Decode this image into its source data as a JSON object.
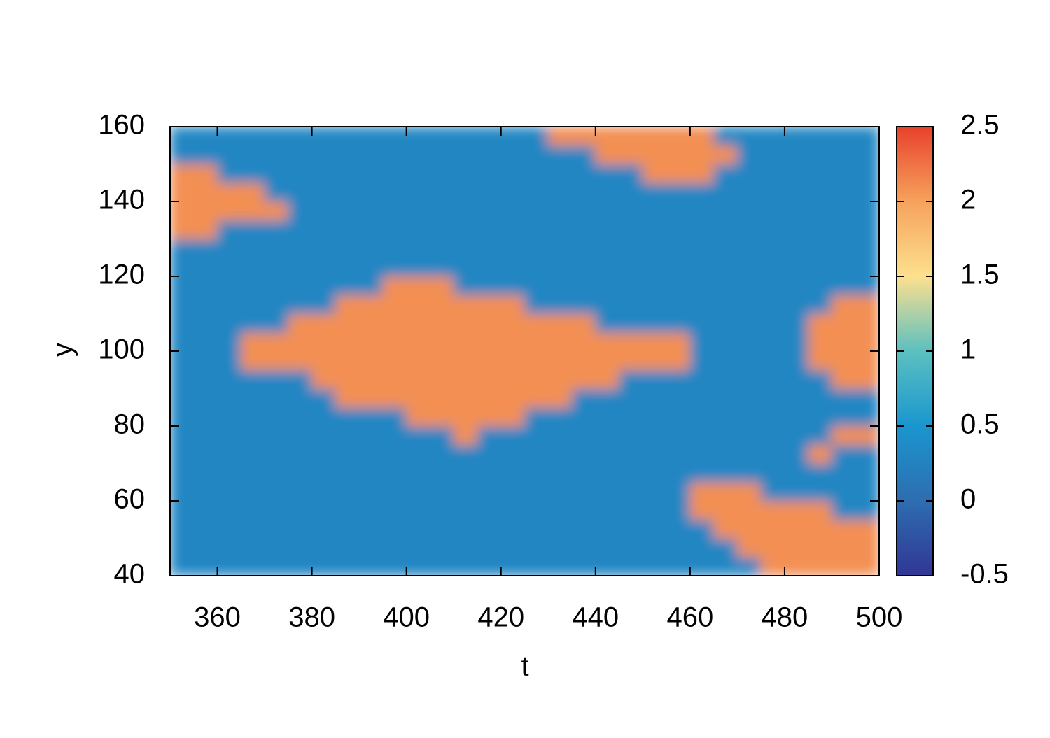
{
  "chart_data": {
    "type": "heatmap",
    "x_label": "t",
    "y_label": "y",
    "xlim": [
      350,
      500
    ],
    "ylim": [
      40,
      160
    ],
    "xticks": [
      360,
      380,
      400,
      420,
      440,
      460,
      480,
      500
    ],
    "yticks": [
      40,
      60,
      80,
      100,
      120,
      140,
      160
    ],
    "zlim": [
      -0.5,
      2.5
    ],
    "zticks": [
      -0.5,
      0,
      0.5,
      1,
      1.5,
      2,
      2.5
    ],
    "colorscale": [
      "#313695",
      "#2e6db0",
      "#1a96cf",
      "#5cc0c0",
      "#fde08e",
      "#f6a25c",
      "#e8412c"
    ],
    "x": [
      352.5,
      357.5,
      362.5,
      367.5,
      372.5,
      377.5,
      382.5,
      387.5,
      392.5,
      397.5,
      402.5,
      407.5,
      412.5,
      417.5,
      422.5,
      427.5,
      432.5,
      437.5,
      442.5,
      447.5,
      452.5,
      457.5,
      462.5,
      467.5,
      472.5,
      477.5,
      482.5,
      487.5,
      492.5,
      497.5
    ],
    "y": [
      42.5,
      47.5,
      52.5,
      57.5,
      62.5,
      67.5,
      72.5,
      77.5,
      82.5,
      87.5,
      92.5,
      97.5,
      102.5,
      107.5,
      112.5,
      117.5,
      122.5,
      127.5,
      132.5,
      137.5,
      142.5,
      147.5,
      152.5,
      157.5
    ],
    "z": [
      [
        0.3,
        0.3,
        0.3,
        0.3,
        0.3,
        0.3,
        0.3,
        0.3,
        0.3,
        0.3,
        0.3,
        0.3,
        0.3,
        0.3,
        0.3,
        0.3,
        0.3,
        0.3,
        0.3,
        0.3,
        0.3,
        0.3,
        0.3,
        0.3,
        0.3,
        2.1,
        2.1,
        2.1,
        2.1,
        2.1
      ],
      [
        0.3,
        0.3,
        0.3,
        0.3,
        0.3,
        0.3,
        0.3,
        0.3,
        0.3,
        0.3,
        0.3,
        0.3,
        0.3,
        0.3,
        0.3,
        0.3,
        0.3,
        0.3,
        0.3,
        0.3,
        0.3,
        0.3,
        0.3,
        0.3,
        2.1,
        2.1,
        2.1,
        2.1,
        2.1,
        2.1
      ],
      [
        0.3,
        0.3,
        0.3,
        0.3,
        0.3,
        0.3,
        0.3,
        0.3,
        0.3,
        0.3,
        0.3,
        0.3,
        0.3,
        0.3,
        0.3,
        0.3,
        0.3,
        0.3,
        0.3,
        0.3,
        0.3,
        0.3,
        0.3,
        2.1,
        2.1,
        2.1,
        2.1,
        2.1,
        2.1,
        2.1
      ],
      [
        0.3,
        0.3,
        0.3,
        0.3,
        0.3,
        0.3,
        0.3,
        0.3,
        0.3,
        0.3,
        0.3,
        0.3,
        0.3,
        0.3,
        0.3,
        0.3,
        0.3,
        0.3,
        0.3,
        0.3,
        0.3,
        0.3,
        2.1,
        2.1,
        2.1,
        2.1,
        2.1,
        2.1,
        0.3,
        0.3
      ],
      [
        0.3,
        0.3,
        0.3,
        0.3,
        0.3,
        0.3,
        0.3,
        0.3,
        0.3,
        0.3,
        0.3,
        0.3,
        0.3,
        0.3,
        0.3,
        0.3,
        0.3,
        0.3,
        0.3,
        0.3,
        0.3,
        0.3,
        2.1,
        2.1,
        2.1,
        0.3,
        0.3,
        0.3,
        0.3,
        0.3
      ],
      [
        0.3,
        0.3,
        0.3,
        0.3,
        0.3,
        0.3,
        0.3,
        0.3,
        0.3,
        0.3,
        0.3,
        0.3,
        0.3,
        0.3,
        0.3,
        0.3,
        0.3,
        0.3,
        0.3,
        0.3,
        0.3,
        0.3,
        0.3,
        0.3,
        0.3,
        0.3,
        0.3,
        0.3,
        0.3,
        0.3
      ],
      [
        0.3,
        0.3,
        0.3,
        0.3,
        0.3,
        0.3,
        0.3,
        0.3,
        0.3,
        0.3,
        0.3,
        0.3,
        0.3,
        0.3,
        0.3,
        0.3,
        0.3,
        0.3,
        0.3,
        0.3,
        0.3,
        0.3,
        0.3,
        0.3,
        0.3,
        0.3,
        0.3,
        2.1,
        0.3,
        0.3
      ],
      [
        0.3,
        0.3,
        0.3,
        0.3,
        0.3,
        0.3,
        0.3,
        0.3,
        0.3,
        0.3,
        0.3,
        0.3,
        2.1,
        0.3,
        0.3,
        0.3,
        0.3,
        0.3,
        0.3,
        0.3,
        0.3,
        0.3,
        0.3,
        0.3,
        0.3,
        0.3,
        0.3,
        0.3,
        2.1,
        2.1
      ],
      [
        0.3,
        0.3,
        0.3,
        0.3,
        0.3,
        0.3,
        0.3,
        0.3,
        0.3,
        0.3,
        2.1,
        2.1,
        2.1,
        2.1,
        2.1,
        0.3,
        0.3,
        0.3,
        0.3,
        0.3,
        0.3,
        0.3,
        0.3,
        0.3,
        0.3,
        0.3,
        0.3,
        0.3,
        0.3,
        0.3
      ],
      [
        0.3,
        0.3,
        0.3,
        0.3,
        0.3,
        0.3,
        0.3,
        2.1,
        2.1,
        2.1,
        2.1,
        2.1,
        2.1,
        2.1,
        2.1,
        2.1,
        2.1,
        0.3,
        0.3,
        0.3,
        0.3,
        0.3,
        0.3,
        0.3,
        0.3,
        0.3,
        0.3,
        0.3,
        0.3,
        0.3
      ],
      [
        0.3,
        0.3,
        0.3,
        0.3,
        0.3,
        0.3,
        2.1,
        2.1,
        2.1,
        2.1,
        2.1,
        2.1,
        2.1,
        2.1,
        2.1,
        2.1,
        2.1,
        2.1,
        2.1,
        0.3,
        0.3,
        0.3,
        0.3,
        0.3,
        0.3,
        0.3,
        0.3,
        0.3,
        2.1,
        2.1
      ],
      [
        0.3,
        0.3,
        0.3,
        2.1,
        2.1,
        2.1,
        2.1,
        2.1,
        2.1,
        2.1,
        2.1,
        2.1,
        2.1,
        2.1,
        2.1,
        2.1,
        2.1,
        2.1,
        2.1,
        2.1,
        2.1,
        2.1,
        0.3,
        0.3,
        0.3,
        0.3,
        0.3,
        2.1,
        2.1,
        2.1
      ],
      [
        0.3,
        0.3,
        0.3,
        2.1,
        2.1,
        2.1,
        2.1,
        2.1,
        2.1,
        2.1,
        2.1,
        2.1,
        2.1,
        2.1,
        2.1,
        2.1,
        2.1,
        2.1,
        2.1,
        2.1,
        2.1,
        2.1,
        0.3,
        0.3,
        0.3,
        0.3,
        0.3,
        2.1,
        2.1,
        2.1
      ],
      [
        0.3,
        0.3,
        0.3,
        0.3,
        0.3,
        2.1,
        2.1,
        2.1,
        2.1,
        2.1,
        2.1,
        2.1,
        2.1,
        2.1,
        2.1,
        2.1,
        2.1,
        2.1,
        0.3,
        0.3,
        0.3,
        0.3,
        0.3,
        0.3,
        0.3,
        0.3,
        0.3,
        2.1,
        2.1,
        2.1
      ],
      [
        0.3,
        0.3,
        0.3,
        0.3,
        0.3,
        0.3,
        0.3,
        2.1,
        2.1,
        2.1,
        2.1,
        2.1,
        2.1,
        2.1,
        2.1,
        0.3,
        0.3,
        0.3,
        0.3,
        0.3,
        0.3,
        0.3,
        0.3,
        0.3,
        0.3,
        0.3,
        0.3,
        0.3,
        2.1,
        2.1
      ],
      [
        0.3,
        0.3,
        0.3,
        0.3,
        0.3,
        0.3,
        0.3,
        0.3,
        0.3,
        2.1,
        2.1,
        2.1,
        0.3,
        0.3,
        0.3,
        0.3,
        0.3,
        0.3,
        0.3,
        0.3,
        0.3,
        0.3,
        0.3,
        0.3,
        0.3,
        0.3,
        0.3,
        0.3,
        0.3,
        0.3
      ],
      [
        0.3,
        0.3,
        0.3,
        0.3,
        0.3,
        0.3,
        0.3,
        0.3,
        0.3,
        0.3,
        0.3,
        0.3,
        0.3,
        0.3,
        0.3,
        0.3,
        0.3,
        0.3,
        0.3,
        0.3,
        0.3,
        0.3,
        0.3,
        0.3,
        0.3,
        0.3,
        0.3,
        0.3,
        0.3,
        0.3
      ],
      [
        0.3,
        0.3,
        0.3,
        0.3,
        0.3,
        0.3,
        0.3,
        0.3,
        0.3,
        0.3,
        0.3,
        0.3,
        0.3,
        0.3,
        0.3,
        0.3,
        0.3,
        0.3,
        0.3,
        0.3,
        0.3,
        0.3,
        0.3,
        0.3,
        0.3,
        0.3,
        0.3,
        0.3,
        0.3,
        0.3
      ],
      [
        2.1,
        2.1,
        0.3,
        0.3,
        0.3,
        0.3,
        0.3,
        0.3,
        0.3,
        0.3,
        0.3,
        0.3,
        0.3,
        0.3,
        0.3,
        0.3,
        0.3,
        0.3,
        0.3,
        0.3,
        0.3,
        0.3,
        0.3,
        0.3,
        0.3,
        0.3,
        0.3,
        0.3,
        0.3,
        0.3
      ],
      [
        2.1,
        2.1,
        2.1,
        2.1,
        2.1,
        0.3,
        0.3,
        0.3,
        0.3,
        0.3,
        0.3,
        0.3,
        0.3,
        0.3,
        0.3,
        0.3,
        0.3,
        0.3,
        0.3,
        0.3,
        0.3,
        0.3,
        0.3,
        0.3,
        0.3,
        0.3,
        0.3,
        0.3,
        0.3,
        0.3
      ],
      [
        2.1,
        2.1,
        2.1,
        2.1,
        0.3,
        0.3,
        0.3,
        0.3,
        0.3,
        0.3,
        0.3,
        0.3,
        0.3,
        0.3,
        0.3,
        0.3,
        0.3,
        0.3,
        0.3,
        0.3,
        0.3,
        0.3,
        0.3,
        0.3,
        0.3,
        0.3,
        0.3,
        0.3,
        0.3,
        0.3
      ],
      [
        2.1,
        2.1,
        0.3,
        0.3,
        0.3,
        0.3,
        0.3,
        0.3,
        0.3,
        0.3,
        0.3,
        0.3,
        0.3,
        0.3,
        0.3,
        0.3,
        0.3,
        0.3,
        0.3,
        0.3,
        2.1,
        2.1,
        2.1,
        0.3,
        0.3,
        0.3,
        0.3,
        0.3,
        0.3,
        0.3
      ],
      [
        0.3,
        0.3,
        0.3,
        0.3,
        0.3,
        0.3,
        0.3,
        0.3,
        0.3,
        0.3,
        0.3,
        0.3,
        0.3,
        0.3,
        0.3,
        0.3,
        0.3,
        0.3,
        2.1,
        2.1,
        2.1,
        2.1,
        2.1,
        2.1,
        0.3,
        0.3,
        0.3,
        0.3,
        0.3,
        0.3
      ],
      [
        0.3,
        0.3,
        0.3,
        0.3,
        0.3,
        0.3,
        0.3,
        0.3,
        0.3,
        0.3,
        0.3,
        0.3,
        0.3,
        0.3,
        0.3,
        0.3,
        2.1,
        2.1,
        2.1,
        2.1,
        2.1,
        2.1,
        2.1,
        0.3,
        0.3,
        0.3,
        0.3,
        0.3,
        0.3,
        0.3
      ]
    ]
  }
}
